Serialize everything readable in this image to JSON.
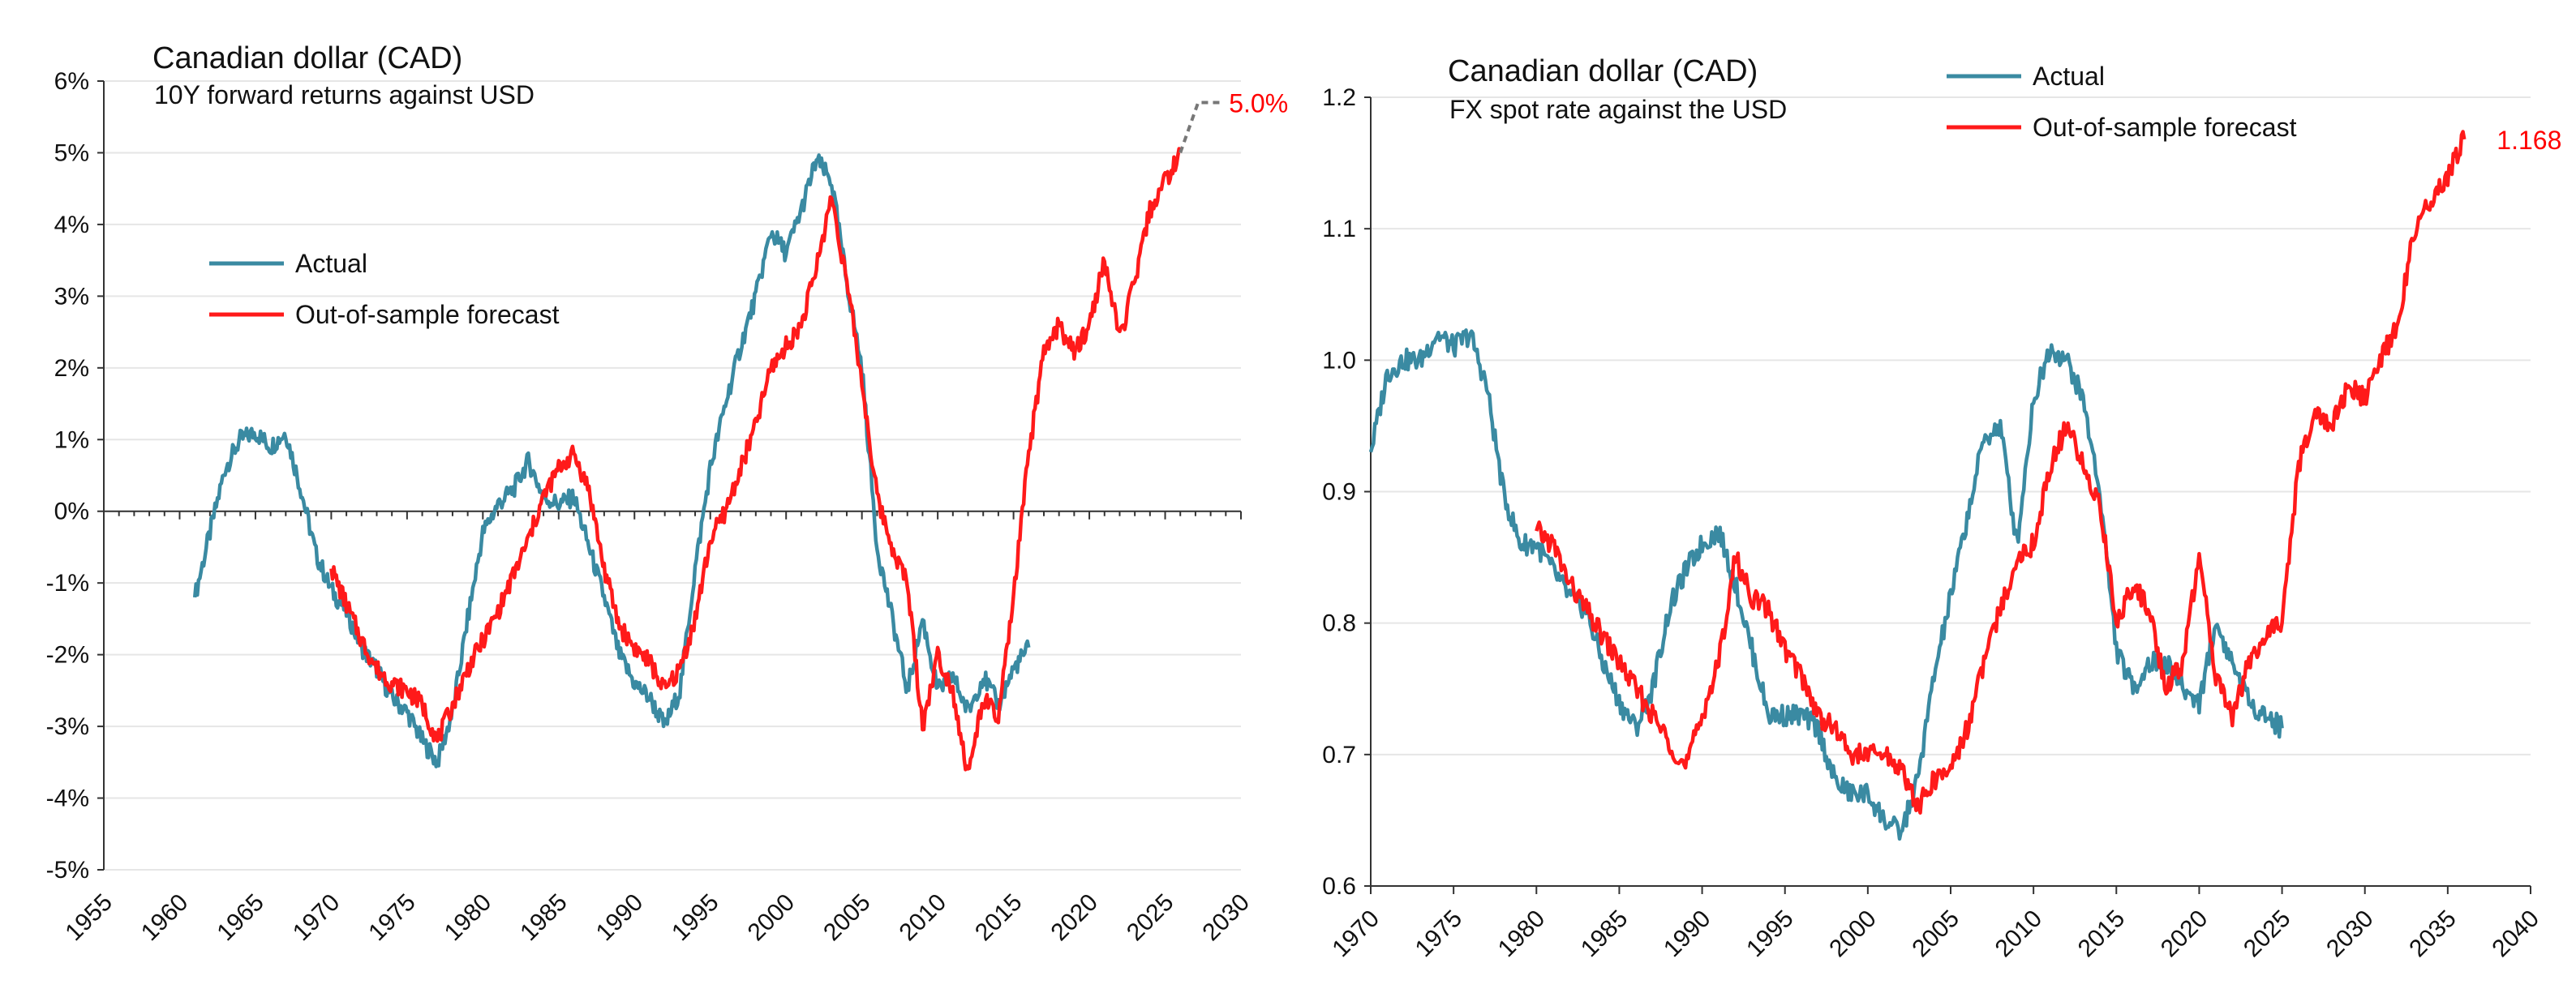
{
  "chart_data": [
    {
      "type": "line",
      "title": "Canadian dollar (CAD)",
      "subtitle": "10Y forward returns against USD",
      "xlabel": "",
      "ylabel": "",
      "xlim": [
        1955,
        2030
      ],
      "ylim": [
        -5,
        6
      ],
      "x_ticks": [
        "1955",
        "1960",
        "1965",
        "1970",
        "1975",
        "1980",
        "1985",
        "1990",
        "1995",
        "2000",
        "2005",
        "2010",
        "2015",
        "2020",
        "2025",
        "2030"
      ],
      "y_ticks": [
        "-5%",
        "-4%",
        "-3%",
        "-2%",
        "-1%",
        "0%",
        "1%",
        "2%",
        "3%",
        "4%",
        "5%",
        "6%"
      ],
      "grid": "horizontal",
      "legend": "upper-left",
      "end_label": "5.0%",
      "series": [
        {
          "name": "Actual",
          "color": "#3a8aa2",
          "points": [
            [
              1961,
              -1.2
            ],
            [
              1962,
              -0.3
            ],
            [
              1963,
              0.6
            ],
            [
              1964,
              1.0
            ],
            [
              1965,
              1.1
            ],
            [
              1966,
              0.9
            ],
            [
              1967,
              1.1
            ],
            [
              1968,
              0.3
            ],
            [
              1969,
              -0.6
            ],
            [
              1970,
              -1.1
            ],
            [
              1971,
              -1.4
            ],
            [
              1972,
              -1.9
            ],
            [
              1973,
              -2.2
            ],
            [
              1974,
              -2.6
            ],
            [
              1975,
              -2.8
            ],
            [
              1976,
              -3.2
            ],
            [
              1977,
              -3.5
            ],
            [
              1978,
              -2.8
            ],
            [
              1979,
              -1.5
            ],
            [
              1980,
              -0.3
            ],
            [
              1981,
              0.1
            ],
            [
              1982,
              0.3
            ],
            [
              1983,
              0.7
            ],
            [
              1984,
              0.2
            ],
            [
              1985,
              0.1
            ],
            [
              1986,
              0.2
            ],
            [
              1987,
              -0.5
            ],
            [
              1988,
              -1.2
            ],
            [
              1989,
              -2.0
            ],
            [
              1990,
              -2.4
            ],
            [
              1991,
              -2.6
            ],
            [
              1992,
              -3.0
            ],
            [
              1993,
              -2.5
            ],
            [
              1994,
              -0.8
            ],
            [
              1995,
              0.6
            ],
            [
              1996,
              1.5
            ],
            [
              1997,
              2.3
            ],
            [
              1998,
              3.0
            ],
            [
              1999,
              3.9
            ],
            [
              2000,
              3.6
            ],
            [
              2001,
              4.2
            ],
            [
              2002,
              4.9
            ],
            [
              2003,
              4.6
            ],
            [
              2004,
              3.2
            ],
            [
              2005,
              2.0
            ],
            [
              2006,
              -0.5
            ],
            [
              2007,
              -1.5
            ],
            [
              2008,
              -2.5
            ],
            [
              2009,
              -1.5
            ],
            [
              2010,
              -2.5
            ],
            [
              2011,
              -2.3
            ],
            [
              2012,
              -2.8
            ],
            [
              2013,
              -2.3
            ],
            [
              2014,
              -2.7
            ],
            [
              2015,
              -2.2
            ],
            [
              2016,
              -1.9
            ]
          ]
        },
        {
          "name": "Out-of-sample forecast",
          "color": "#ff1a1a",
          "points": [
            [
              1970,
              -0.8
            ],
            [
              1971,
              -1.3
            ],
            [
              1972,
              -1.8
            ],
            [
              1973,
              -2.2
            ],
            [
              1974,
              -2.4
            ],
            [
              1975,
              -2.5
            ],
            [
              1976,
              -2.7
            ],
            [
              1977,
              -3.2
            ],
            [
              1978,
              -2.7
            ],
            [
              1979,
              -2.2
            ],
            [
              1980,
              -1.8
            ],
            [
              1981,
              -1.4
            ],
            [
              1982,
              -0.9
            ],
            [
              1983,
              -0.4
            ],
            [
              1984,
              0.2
            ],
            [
              1985,
              0.6
            ],
            [
              1986,
              0.8
            ],
            [
              1987,
              0.3
            ],
            [
              1988,
              -0.8
            ],
            [
              1989,
              -1.6
            ],
            [
              1990,
              -1.9
            ],
            [
              1991,
              -2.1
            ],
            [
              1992,
              -2.5
            ],
            [
              1993,
              -2.2
            ],
            [
              1994,
              -1.5
            ],
            [
              1995,
              -0.4
            ],
            [
              1996,
              0.0
            ],
            [
              1997,
              0.6
            ],
            [
              1998,
              1.2
            ],
            [
              1999,
              2.0
            ],
            [
              2000,
              2.3
            ],
            [
              2001,
              2.6
            ],
            [
              2002,
              3.4
            ],
            [
              2003,
              4.4
            ],
            [
              2004,
              3.2
            ],
            [
              2005,
              1.8
            ],
            [
              2006,
              0.2
            ],
            [
              2007,
              -0.5
            ],
            [
              2008,
              -1.0
            ],
            [
              2009,
              -3.0
            ],
            [
              2010,
              -2.0
            ],
            [
              2011,
              -2.5
            ],
            [
              2012,
              -3.7
            ],
            [
              2013,
              -2.6
            ],
            [
              2014,
              -2.9
            ],
            [
              2015,
              -1.2
            ],
            [
              2016,
              0.8
            ],
            [
              2017,
              2.2
            ],
            [
              2018,
              2.6
            ],
            [
              2019,
              2.2
            ],
            [
              2020,
              2.6
            ],
            [
              2021,
              3.5
            ],
            [
              2022,
              2.4
            ],
            [
              2023,
              3.2
            ],
            [
              2024,
              4.2
            ],
            [
              2025,
              4.6
            ],
            [
              2026,
              5.0
            ]
          ]
        }
      ]
    },
    {
      "type": "line",
      "title": "Canadian dollar (CAD)",
      "subtitle": "FX spot rate against the USD",
      "xlabel": "",
      "ylabel": "",
      "xlim": [
        1970,
        2040
      ],
      "ylim": [
        0.6,
        1.2
      ],
      "x_ticks": [
        "1970",
        "1975",
        "1980",
        "1985",
        "1990",
        "1995",
        "2000",
        "2005",
        "2010",
        "2015",
        "2020",
        "2025",
        "2030",
        "2035",
        "2040"
      ],
      "y_ticks": [
        "0.6",
        "0.7",
        "0.8",
        "0.9",
        "1.0",
        "1.1",
        "1.2"
      ],
      "grid": "horizontal",
      "legend": "top-center",
      "end_label": "1.168",
      "series": [
        {
          "name": "Actual",
          "color": "#3a8aa2",
          "points": [
            [
              1970,
              0.93
            ],
            [
              1971,
              0.99
            ],
            [
              1972,
              1.0
            ],
            [
              1973,
              1.0
            ],
            [
              1974,
              1.02
            ],
            [
              1975,
              1.01
            ],
            [
              1976,
              1.02
            ],
            [
              1977,
              0.98
            ],
            [
              1978,
              0.9
            ],
            [
              1979,
              0.86
            ],
            [
              1980,
              0.86
            ],
            [
              1981,
              0.84
            ],
            [
              1982,
              0.82
            ],
            [
              1983,
              0.81
            ],
            [
              1984,
              0.77
            ],
            [
              1985,
              0.74
            ],
            [
              1986,
              0.72
            ],
            [
              1987,
              0.75
            ],
            [
              1988,
              0.81
            ],
            [
              1989,
              0.84
            ],
            [
              1990,
              0.86
            ],
            [
              1991,
              0.87
            ],
            [
              1992,
              0.83
            ],
            [
              1993,
              0.78
            ],
            [
              1994,
              0.73
            ],
            [
              1995,
              0.73
            ],
            [
              1996,
              0.73
            ],
            [
              1997,
              0.72
            ],
            [
              1998,
              0.68
            ],
            [
              1999,
              0.67
            ],
            [
              2000,
              0.67
            ],
            [
              2001,
              0.65
            ],
            [
              2002,
              0.64
            ],
            [
              2003,
              0.68
            ],
            [
              2004,
              0.76
            ],
            [
              2005,
              0.82
            ],
            [
              2006,
              0.88
            ],
            [
              2007,
              0.94
            ],
            [
              2008,
              0.95
            ],
            [
              2009,
              0.86
            ],
            [
              2010,
              0.97
            ],
            [
              2011,
              1.01
            ],
            [
              2012,
              1.0
            ],
            [
              2013,
              0.97
            ],
            [
              2014,
              0.9
            ],
            [
              2015,
              0.78
            ],
            [
              2016,
              0.75
            ],
            [
              2017,
              0.77
            ],
            [
              2018,
              0.77
            ],
            [
              2019,
              0.75
            ],
            [
              2020,
              0.74
            ],
            [
              2021,
              0.8
            ],
            [
              2022,
              0.77
            ],
            [
              2023,
              0.74
            ],
            [
              2024,
              0.73
            ],
            [
              2025,
              0.72
            ]
          ]
        },
        {
          "name": "Out-of-sample forecast",
          "color": "#ff1a1a",
          "points": [
            [
              1980,
              0.87
            ],
            [
              1981,
              0.86
            ],
            [
              1982,
              0.83
            ],
            [
              1983,
              0.81
            ],
            [
              1984,
              0.79
            ],
            [
              1985,
              0.77
            ],
            [
              1986,
              0.75
            ],
            [
              1987,
              0.73
            ],
            [
              1988,
              0.71
            ],
            [
              1989,
              0.69
            ],
            [
              1990,
              0.73
            ],
            [
              1991,
              0.77
            ],
            [
              1992,
              0.85
            ],
            [
              1993,
              0.82
            ],
            [
              1994,
              0.81
            ],
            [
              1995,
              0.78
            ],
            [
              1996,
              0.76
            ],
            [
              1997,
              0.73
            ],
            [
              1998,
              0.72
            ],
            [
              1999,
              0.7
            ],
            [
              2000,
              0.7
            ],
            [
              2001,
              0.7
            ],
            [
              2002,
              0.69
            ],
            [
              2003,
              0.66
            ],
            [
              2004,
              0.68
            ],
            [
              2005,
              0.69
            ],
            [
              2006,
              0.72
            ],
            [
              2007,
              0.77
            ],
            [
              2008,
              0.81
            ],
            [
              2009,
              0.85
            ],
            [
              2010,
              0.86
            ],
            [
              2011,
              0.92
            ],
            [
              2012,
              0.95
            ],
            [
              2013,
              0.92
            ],
            [
              2014,
              0.89
            ],
            [
              2015,
              0.8
            ],
            [
              2016,
              0.83
            ],
            [
              2017,
              0.81
            ],
            [
              2018,
              0.75
            ],
            [
              2019,
              0.77
            ],
            [
              2020,
              0.85
            ],
            [
              2021,
              0.76
            ],
            [
              2022,
              0.73
            ],
            [
              2023,
              0.77
            ],
            [
              2024,
              0.79
            ],
            [
              2025,
              0.8
            ],
            [
              2026,
              0.92
            ],
            [
              2027,
              0.96
            ],
            [
              2028,
              0.95
            ],
            [
              2029,
              0.98
            ],
            [
              2030,
              0.97
            ],
            [
              2031,
              1.0
            ],
            [
              2032,
              1.03
            ],
            [
              2033,
              1.1
            ],
            [
              2034,
              1.12
            ],
            [
              2035,
              1.14
            ],
            [
              2036,
              1.168
            ]
          ]
        }
      ]
    }
  ]
}
